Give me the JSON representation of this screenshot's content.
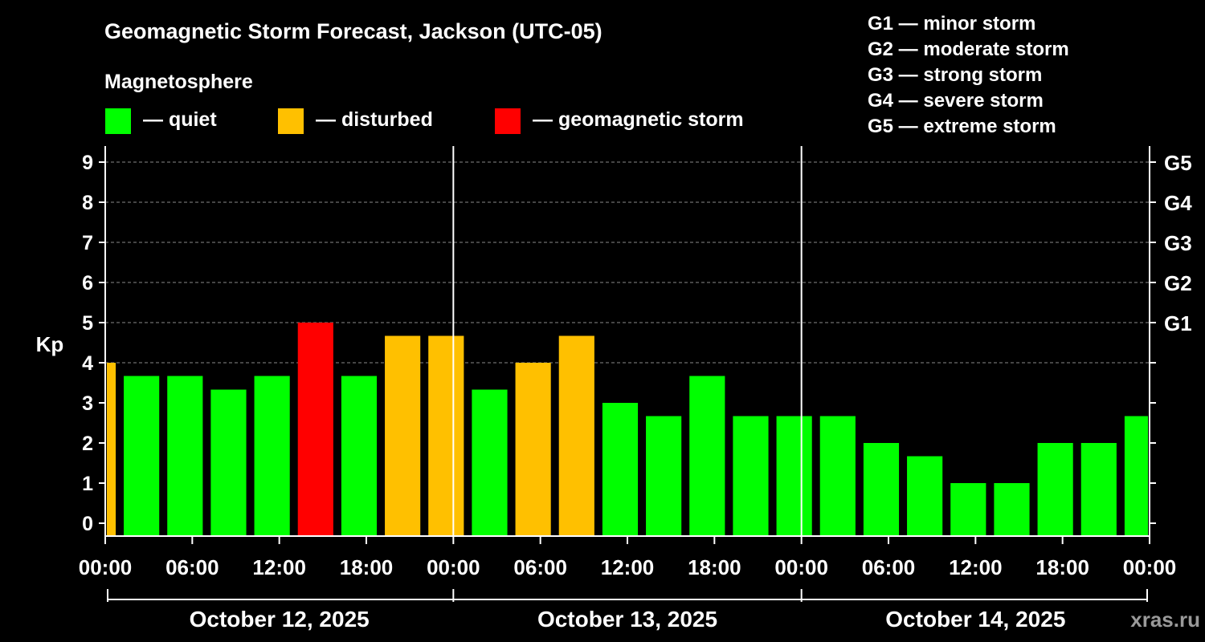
{
  "chart_data": {
    "type": "bar",
    "title": "Geomagnetic Storm Forecast, Jackson (UTC-05)",
    "subtitle": "Magnetosphere",
    "ylabel": "Kp",
    "ylim": [
      -0.3,
      9.4
    ],
    "y_ticks": [
      "0",
      "1",
      "2",
      "3",
      "4",
      "5",
      "6",
      "7",
      "8",
      "9"
    ],
    "storm_level_ticks": [
      {
        "kp": 5,
        "label": "G1"
      },
      {
        "kp": 6,
        "label": "G2"
      },
      {
        "kp": 7,
        "label": "G3"
      },
      {
        "kp": 8,
        "label": "G4"
      },
      {
        "kp": 9,
        "label": "G5"
      }
    ],
    "legend": [
      {
        "key": "quiet",
        "label": "— quiet",
        "color": "#00ff00"
      },
      {
        "key": "disturbed",
        "label": "— disturbed",
        "color": "#ffc000"
      },
      {
        "key": "storm",
        "label": "— geomagnetic storm",
        "color": "#ff0000"
      }
    ],
    "storm_scale": [
      "G1 — minor storm",
      "G2 — moderate storm",
      "G3 — strong storm",
      "G4 — severe storm",
      "G5 — extreme storm"
    ],
    "x_tick_labels": [
      "00:00",
      "06:00",
      "12:00",
      "18:00",
      "00:00",
      "06:00",
      "12:00",
      "18:00",
      "00:00",
      "06:00",
      "12:00",
      "18:00",
      "00:00"
    ],
    "dates": [
      "October 12, 2025",
      "October 13, 2025",
      "October 14, 2025"
    ],
    "bars": [
      {
        "start_hour": 0,
        "end_hour": 1,
        "kp": 4.0,
        "status": "disturbed"
      },
      {
        "start_hour": 1,
        "end_hour": 4,
        "kp": 3.67,
        "status": "quiet"
      },
      {
        "start_hour": 4,
        "end_hour": 7,
        "kp": 3.67,
        "status": "quiet"
      },
      {
        "start_hour": 7,
        "end_hour": 10,
        "kp": 3.33,
        "status": "quiet"
      },
      {
        "start_hour": 10,
        "end_hour": 13,
        "kp": 3.67,
        "status": "quiet"
      },
      {
        "start_hour": 13,
        "end_hour": 16,
        "kp": 5.0,
        "status": "storm"
      },
      {
        "start_hour": 16,
        "end_hour": 19,
        "kp": 3.67,
        "status": "quiet"
      },
      {
        "start_hour": 19,
        "end_hour": 22,
        "kp": 4.67,
        "status": "disturbed"
      },
      {
        "start_hour": 22,
        "end_hour": 25,
        "kp": 4.67,
        "status": "disturbed"
      },
      {
        "start_hour": 25,
        "end_hour": 28,
        "kp": 3.33,
        "status": "quiet"
      },
      {
        "start_hour": 28,
        "end_hour": 31,
        "kp": 4.0,
        "status": "disturbed"
      },
      {
        "start_hour": 31,
        "end_hour": 34,
        "kp": 4.67,
        "status": "disturbed"
      },
      {
        "start_hour": 34,
        "end_hour": 37,
        "kp": 3.0,
        "status": "quiet"
      },
      {
        "start_hour": 37,
        "end_hour": 40,
        "kp": 2.67,
        "status": "quiet"
      },
      {
        "start_hour": 40,
        "end_hour": 43,
        "kp": 3.67,
        "status": "quiet"
      },
      {
        "start_hour": 43,
        "end_hour": 46,
        "kp": 2.67,
        "status": "quiet"
      },
      {
        "start_hour": 46,
        "end_hour": 49,
        "kp": 2.67,
        "status": "quiet"
      },
      {
        "start_hour": 49,
        "end_hour": 52,
        "kp": 2.67,
        "status": "quiet"
      },
      {
        "start_hour": 52,
        "end_hour": 55,
        "kp": 2.0,
        "status": "quiet"
      },
      {
        "start_hour": 55,
        "end_hour": 58,
        "kp": 1.67,
        "status": "quiet"
      },
      {
        "start_hour": 58,
        "end_hour": 61,
        "kp": 1.0,
        "status": "quiet"
      },
      {
        "start_hour": 61,
        "end_hour": 64,
        "kp": 1.0,
        "status": "quiet"
      },
      {
        "start_hour": 64,
        "end_hour": 67,
        "kp": 2.0,
        "status": "quiet"
      },
      {
        "start_hour": 67,
        "end_hour": 70,
        "kp": 2.0,
        "status": "quiet"
      },
      {
        "start_hour": 70,
        "end_hour": 72,
        "kp": 2.67,
        "status": "quiet"
      }
    ]
  },
  "watermark": "xras.ru"
}
